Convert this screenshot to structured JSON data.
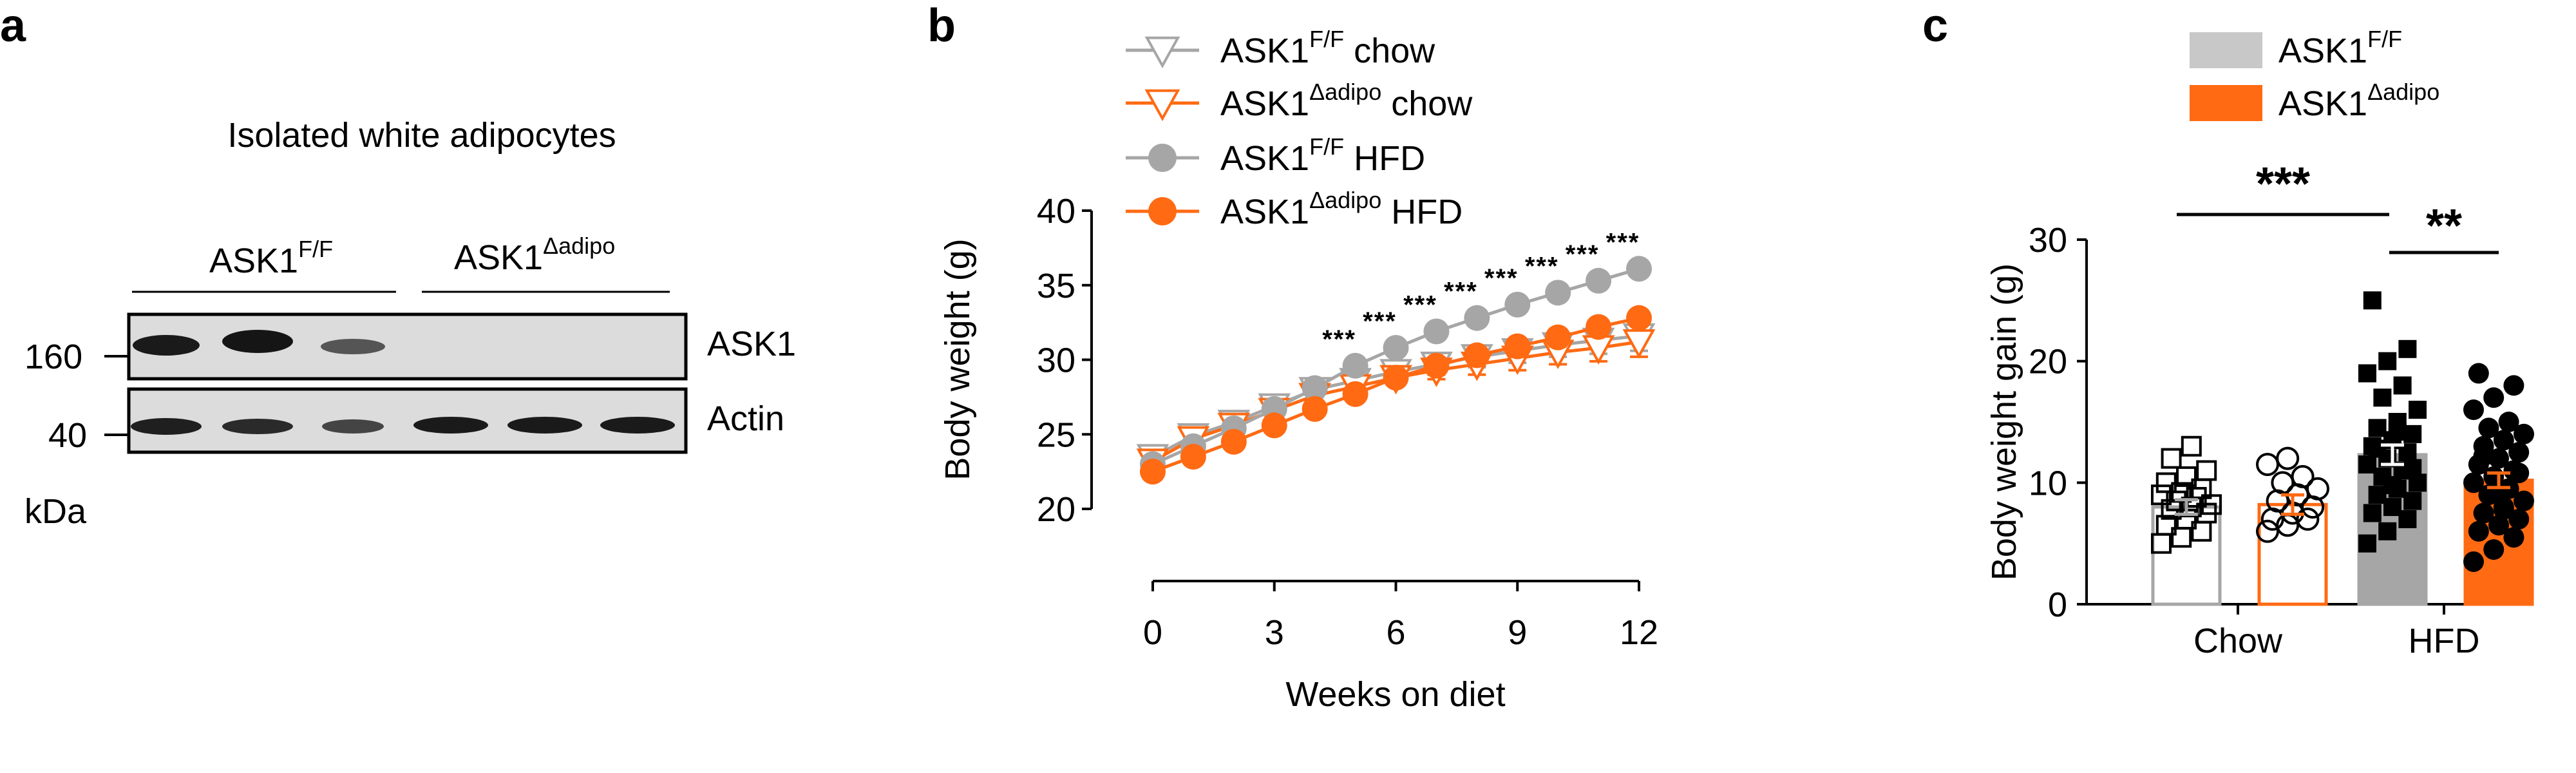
{
  "panels": {
    "a": {
      "letter": "a",
      "title": "Isolated white adipocytes",
      "group_left": {
        "base": "ASK1",
        "sup": "F/F"
      },
      "group_right": {
        "base": "ASK1",
        "sup": "Δadipo"
      },
      "row_labels": [
        "ASK1",
        "Actin"
      ],
      "mw_labels": [
        "160",
        "40"
      ],
      "unit": "kDa",
      "blot_bg": "#d9d9d9",
      "band_color": "#1a1a1a"
    },
    "b": {
      "letter": "b"
    },
    "c": {
      "letter": "c"
    }
  },
  "colors": {
    "grey": "#a6a6a6",
    "orange": "#ff6a13",
    "black": "#000000",
    "bar_grey": "#a6a6a6",
    "bar_legend_grey": "#c8c8c8"
  },
  "chart_data": [
    {
      "type": "line",
      "panel": "b",
      "xlabel": "Weeks on diet",
      "ylabel": "Body weight (g)",
      "xlim": [
        0,
        12
      ],
      "ylim": [
        20,
        40
      ],
      "xticks": [
        0,
        3,
        6,
        9,
        12
      ],
      "yticks": [
        20,
        25,
        30,
        35,
        40
      ],
      "x": [
        0,
        1,
        2,
        3,
        4,
        5,
        6,
        7,
        8,
        9,
        10,
        11,
        12
      ],
      "legend_position": "top",
      "series": [
        {
          "name": "ASK1^F/F chow",
          "label_base": "ASK1",
          "label_sup": "F/F",
          "label_tail": " chow",
          "color": "#a6a6a6",
          "marker": "open-triangle-down",
          "values": [
            23.5,
            24.9,
            25.8,
            26.9,
            28.0,
            28.6,
            29.2,
            29.7,
            30.2,
            30.6,
            31.0,
            31.3,
            31.6
          ],
          "error": [
            0.4,
            0.4,
            0.4,
            0.4,
            0.5,
            0.5,
            0.5,
            0.6,
            0.7,
            0.8,
            0.8,
            0.9,
            1.0
          ]
        },
        {
          "name": "ASK1^Δadipo chow",
          "label_base": "ASK1",
          "label_sup": "Δadipo",
          "label_tail": " chow",
          "color": "#ff6a13",
          "marker": "open-triangle-down",
          "values": [
            23.2,
            24.7,
            25.6,
            26.6,
            27.6,
            28.2,
            28.8,
            29.3,
            29.7,
            30.1,
            30.5,
            30.8,
            31.2
          ],
          "error": [
            0.4,
            0.4,
            0.4,
            0.4,
            0.5,
            0.5,
            0.5,
            0.6,
            0.7,
            0.8,
            0.8,
            0.9,
            1.0
          ]
        },
        {
          "name": "ASK1^F/F HFD",
          "label_base": "ASK1",
          "label_sup": "F/F",
          "label_tail": " HFD",
          "color": "#a6a6a6",
          "marker": "filled-circle",
          "values": [
            23.0,
            24.2,
            25.4,
            26.7,
            28.1,
            29.6,
            30.8,
            31.9,
            32.8,
            33.7,
            34.5,
            35.3,
            36.1
          ],
          "error": [
            0.3,
            0.3,
            0.3,
            0.3,
            0.3,
            0.4,
            0.4,
            0.4,
            0.4,
            0.4,
            0.4,
            0.4,
            0.4
          ]
        },
        {
          "name": "ASK1^Δadipo HFD",
          "label_base": "ASK1",
          "label_sup": "Δadipo",
          "label_tail": " HFD",
          "color": "#ff6a13",
          "marker": "filled-circle",
          "values": [
            22.5,
            23.5,
            24.5,
            25.6,
            26.7,
            27.7,
            28.8,
            29.6,
            30.3,
            30.9,
            31.5,
            32.2,
            32.8
          ],
          "error": [
            0.3,
            0.3,
            0.3,
            0.3,
            0.3,
            0.4,
            0.5,
            0.6,
            0.7,
            0.7,
            0.6,
            0.5,
            0.5
          ]
        }
      ],
      "significance": [
        {
          "x": 5,
          "text": "***"
        },
        {
          "x": 6,
          "text": "***"
        },
        {
          "x": 7,
          "text": "***"
        },
        {
          "x": 8,
          "text": "***"
        },
        {
          "x": 9,
          "text": "***"
        },
        {
          "x": 10,
          "text": "***"
        },
        {
          "x": 11,
          "text": "***"
        },
        {
          "x": 12,
          "text": "***"
        }
      ]
    },
    {
      "type": "bar",
      "panel": "c",
      "ylabel": "Body weight gain (g)",
      "ylim": [
        0,
        30
      ],
      "yticks": [
        0,
        10,
        20,
        30
      ],
      "categories": [
        "Chow",
        "HFD"
      ],
      "legend_position": "top",
      "legend": [
        {
          "base": "ASK1",
          "sup": "F/F",
          "color": "#c8c8c8"
        },
        {
          "base": "ASK1",
          "sup": "Δadipo",
          "color": "#ff6a13"
        }
      ],
      "bars": [
        {
          "category": "Chow",
          "group": "ASK1^F/F",
          "mean": 8.0,
          "sem": 0.6,
          "fill": "#ffffff",
          "edge": "#a6a6a6",
          "marker": "open-square",
          "points": [
            5.0,
            5.5,
            6.0,
            6.5,
            7.0,
            7.5,
            7.8,
            8.0,
            8.2,
            8.5,
            8.8,
            9.0,
            9.2,
            9.5,
            10.0,
            10.5,
            11.0,
            12.0,
            13.0
          ]
        },
        {
          "category": "Chow",
          "group": "ASK1^Δadipo",
          "mean": 8.2,
          "sem": 0.8,
          "fill": "#ffffff",
          "edge": "#ff6a13",
          "marker": "open-circle",
          "points": [
            6.0,
            6.5,
            7.0,
            7.0,
            7.5,
            8.0,
            8.5,
            9.0,
            9.5,
            10.0,
            10.5,
            11.5,
            12.0
          ]
        },
        {
          "category": "HFD",
          "group": "ASK1^F/F",
          "mean": 12.3,
          "sem": 0.8,
          "fill": "#a6a6a6",
          "edge": "#a6a6a6",
          "marker": "filled-square",
          "points": [
            5.0,
            6.0,
            7.0,
            7.5,
            8.0,
            8.5,
            9.0,
            9.5,
            10.0,
            10.5,
            11.0,
            11.5,
            12.0,
            12.5,
            13.0,
            13.5,
            14.0,
            14.5,
            15.0,
            16.0,
            17.0,
            18.0,
            19.0,
            20.0,
            21.0,
            25.0,
            9.8,
            11.2,
            12.8,
            14.2
          ]
        },
        {
          "category": "HFD",
          "group": "ASK1^Δadipo",
          "mean": 10.2,
          "sem": 0.6,
          "fill": "#ff6a13",
          "edge": "#ff6a13",
          "marker": "filled-circle",
          "points": [
            3.5,
            4.5,
            5.5,
            6.0,
            6.5,
            7.0,
            7.5,
            8.0,
            8.5,
            9.0,
            9.5,
            10.0,
            10.5,
            11.0,
            11.5,
            12.0,
            12.5,
            13.0,
            13.5,
            14.0,
            14.5,
            15.0,
            16.0,
            17.0,
            18.0,
            19.0,
            9.2,
            10.8,
            12.2,
            7.8
          ]
        }
      ],
      "significance": [
        {
          "from": "Chow",
          "to": "HFD ASK1^F/F",
          "text": "***"
        },
        {
          "from": "HFD ASK1^F/F",
          "to": "HFD ASK1^Δadipo",
          "text": "**"
        }
      ]
    }
  ]
}
